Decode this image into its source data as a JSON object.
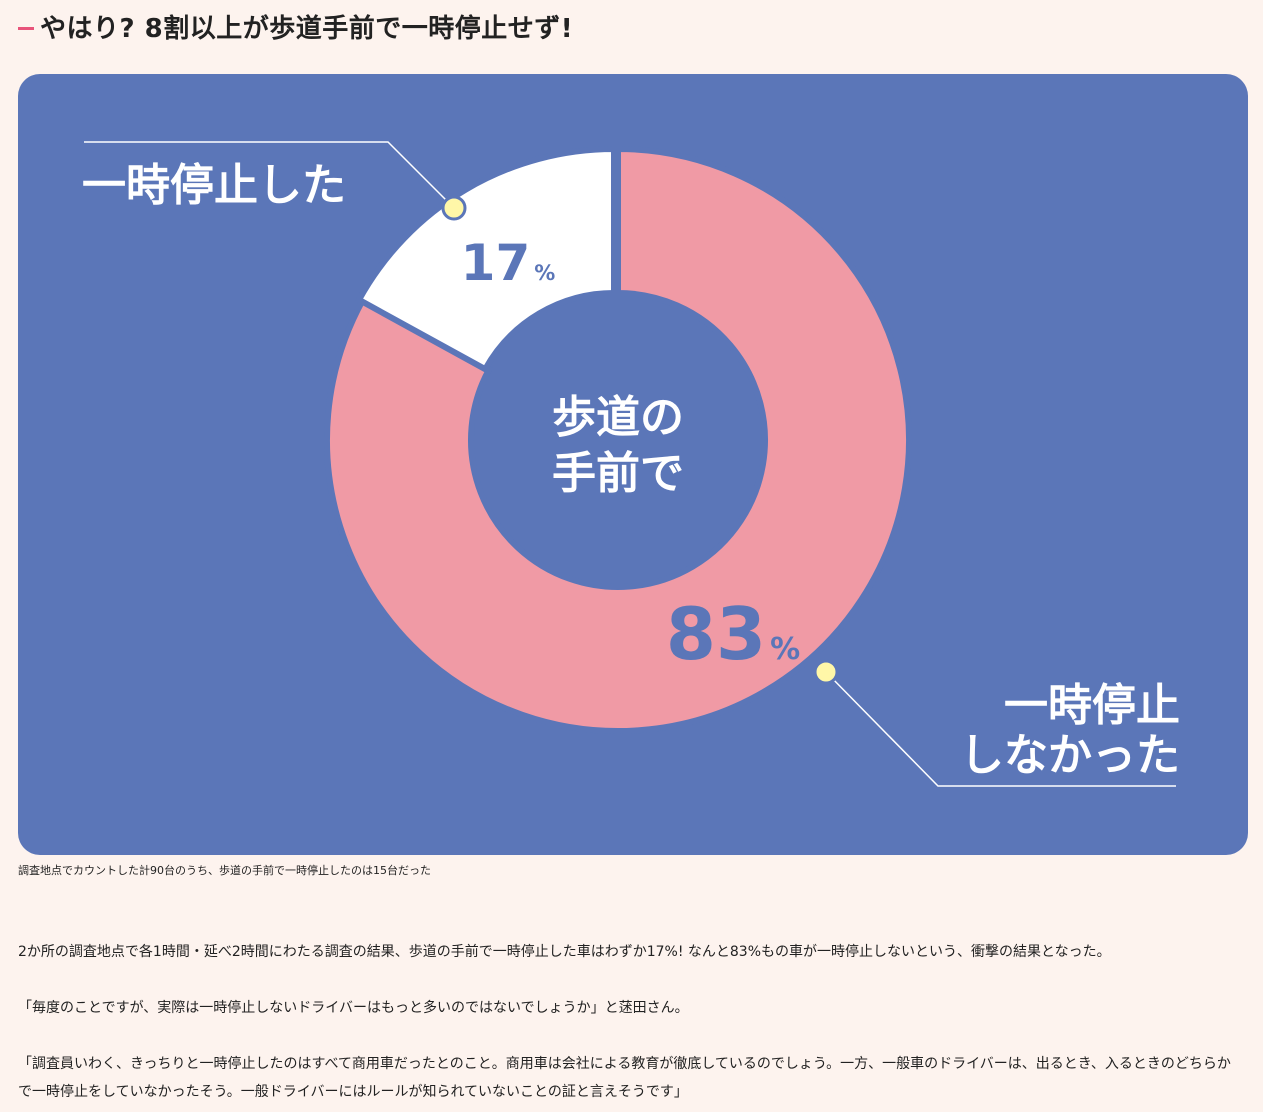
{
  "heading": {
    "title": "やはり? 8割以上が歩道手前で一時停止せず!"
  },
  "chart_data": {
    "type": "pie",
    "center_label": [
      "歩道の",
      "手前で"
    ],
    "slices": [
      {
        "label": [
          "一時停止",
          "しなかった"
        ],
        "value": 83,
        "value_text": "83",
        "unit": "%",
        "color": "#f09aa5"
      },
      {
        "label": [
          "一時停止した"
        ],
        "value": 17,
        "value_text": "17",
        "unit": "%",
        "color": "#ffffff"
      }
    ],
    "colors": {
      "background": "#5b76b8",
      "value_text": "#5b76b8",
      "marker": "#fff7a8",
      "leader_line": "#ffffff"
    }
  },
  "caption": "調査地点でカウントした計90台のうち、歩道の手前で一時停止したのは15台だった",
  "paragraphs": [
    "2か所の調査地点で各1時間・延べ2時間にわたる調査の結果、歩道の手前で一時停止した車はわずか17%! なんと83%もの車が一時停止しないという、衝撃の結果となった。",
    "「毎度のことですが、実際は一時停止しないドライバーはもっと多いのではないでしょうか」と蒁田さん。",
    "「調査員いわく、きっちりと一時停止したのはすべて商用車だったとのこと。商用車は会社による教育が徹底しているのでしょう。一方、一般車のドライバーは、出るとき、入るときのどちらかで一時停止をしていなかったそう。一般ドライバーにはルールが知られていないことの証と言えそうです」"
  ]
}
